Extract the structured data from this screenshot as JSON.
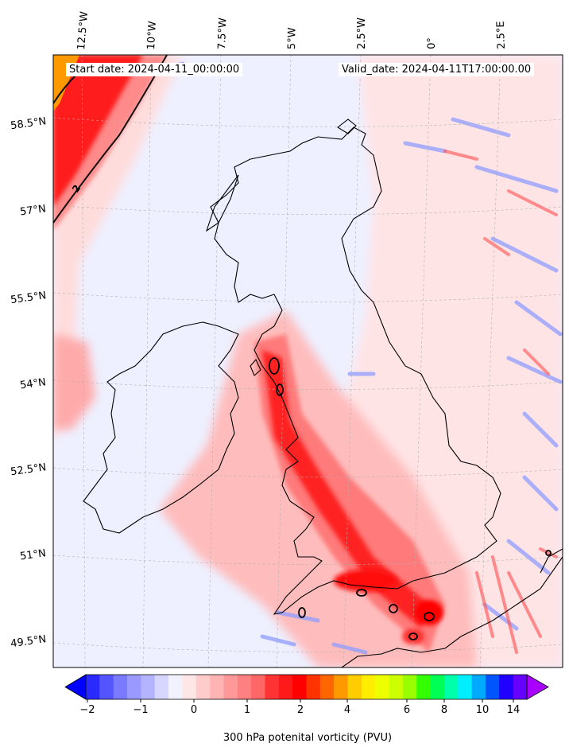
{
  "map": {
    "start_date": "Start date: 2024-04-11_00:00:00",
    "valid_date": "Valid_date: 2024-04-11T17:00:00.00",
    "lon_labels": [
      "12.5°W",
      "10°W",
      "7.5°W",
      "5°W",
      "2.5°W",
      "0°",
      "2.5°E"
    ],
    "lat_labels": [
      "58.5°N",
      "57°N",
      "55.5°N",
      "54°N",
      "52.5°N",
      "51°N",
      "49.5°N"
    ],
    "contour_label": "2",
    "field": "300 hPa potential vorticity",
    "colors": {
      "background": "#eef0ff",
      "light_red": "#ffc8c8",
      "medium_red": "#ff8080",
      "strong_red": "#ff1a1a",
      "blue_streak": "#9aa8ff",
      "coastline": "#000000"
    }
  },
  "colorbar": {
    "ticks": [
      "−2",
      "−1",
      "0",
      "1",
      "2",
      "4",
      "6",
      "8",
      "10",
      "14"
    ],
    "label": "300 hPa potenital vorticity (PVU)",
    "colors": [
      "#0000ff",
      "#2a2aff",
      "#5555ff",
      "#7a7aff",
      "#9999ff",
      "#b3b3ff",
      "#d6d6ff",
      "#f2f2ff",
      "#ffe6e6",
      "#ffcccc",
      "#ffb3b3",
      "#ff9999",
      "#ff8080",
      "#ff6666",
      "#ff3333",
      "#ff1a1a",
      "#ff0000",
      "#ff3300",
      "#ff6600",
      "#ff9900",
      "#ffcc00",
      "#ffee00",
      "#eeff00",
      "#ccff00",
      "#99ff00",
      "#33ff00",
      "#00ff55",
      "#00ffaa",
      "#00eeff",
      "#00aaff",
      "#0055ff",
      "#2200ff",
      "#6600ff",
      "#aa00ff"
    ]
  }
}
